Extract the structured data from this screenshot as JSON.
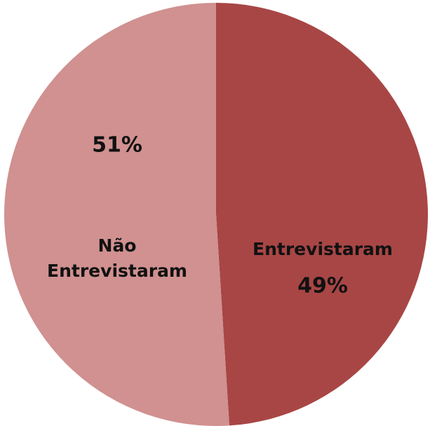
{
  "chart_data": {
    "type": "pie",
    "categories": [
      "Entrevistaram",
      "Não Entrevistaram"
    ],
    "values": [
      49,
      51
    ],
    "value_labels": [
      "49%",
      "51%"
    ],
    "colors": [
      "#a84645",
      "#d09190"
    ]
  }
}
